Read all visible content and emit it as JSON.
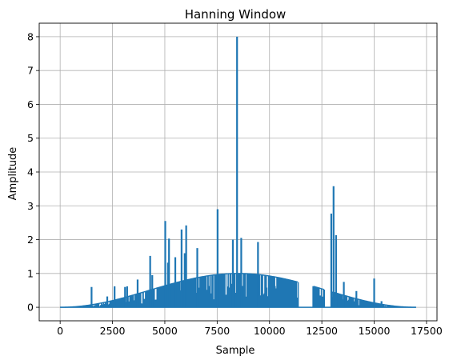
{
  "chart_data": {
    "type": "line",
    "title": "Hanning Window",
    "xlabel": "Sample",
    "ylabel": "Amplitude",
    "xlim": [
      -1000,
      18000
    ],
    "ylim": [
      -0.4,
      8.4
    ],
    "xticks": [
      0,
      2500,
      5000,
      7500,
      10000,
      12500,
      15000,
      17500
    ],
    "yticks": [
      0,
      1,
      2,
      3,
      4,
      5,
      6,
      7,
      8
    ],
    "grid": true,
    "color": "#1f77b4",
    "series": [
      {
        "n_samples": 17000,
        "envelope_peak": 1.0,
        "gaps": [
          [
            11400,
            12050
          ],
          [
            12650,
            12950
          ]
        ],
        "spikes": [
          {
            "x": 1500,
            "y": 0.6
          },
          {
            "x": 2250,
            "y": 0.32
          },
          {
            "x": 2600,
            "y": 0.62
          },
          {
            "x": 3100,
            "y": 0.6
          },
          {
            "x": 3200,
            "y": 0.62
          },
          {
            "x": 3700,
            "y": 0.82
          },
          {
            "x": 4300,
            "y": 1.52
          },
          {
            "x": 4400,
            "y": 0.95
          },
          {
            "x": 5020,
            "y": 2.55
          },
          {
            "x": 5150,
            "y": 1.32
          },
          {
            "x": 5200,
            "y": 2.03
          },
          {
            "x": 5500,
            "y": 1.48
          },
          {
            "x": 5800,
            "y": 2.3
          },
          {
            "x": 5950,
            "y": 1.6
          },
          {
            "x": 6020,
            "y": 2.42
          },
          {
            "x": 6550,
            "y": 1.75
          },
          {
            "x": 7520,
            "y": 2.9
          },
          {
            "x": 8250,
            "y": 2.0
          },
          {
            "x": 8450,
            "y": 8.0
          },
          {
            "x": 8650,
            "y": 2.05
          },
          {
            "x": 9450,
            "y": 1.93
          },
          {
            "x": 12950,
            "y": 2.77
          },
          {
            "x": 13060,
            "y": 3.58
          },
          {
            "x": 13180,
            "y": 2.13
          },
          {
            "x": 13550,
            "y": 0.75
          },
          {
            "x": 14150,
            "y": 0.48
          },
          {
            "x": 15000,
            "y": 0.85
          },
          {
            "x": 15350,
            "y": 0.18
          }
        ]
      }
    ]
  }
}
